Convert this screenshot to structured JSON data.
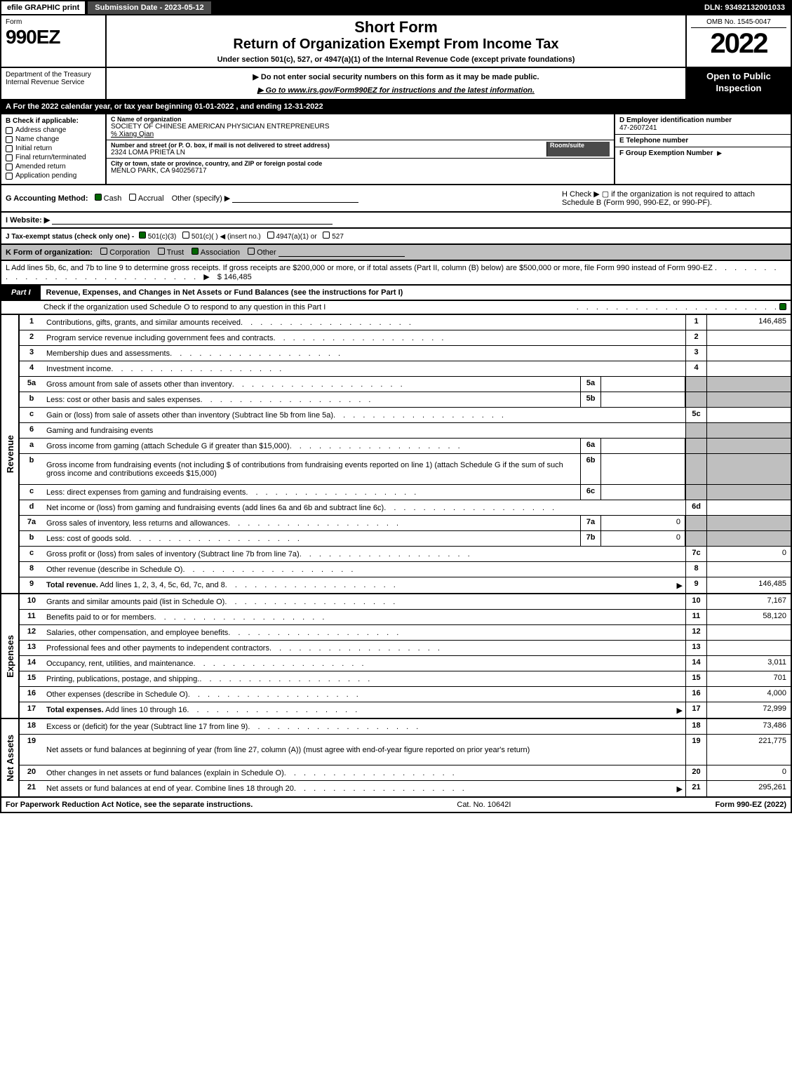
{
  "topbar": {
    "efile": "efile GRAPHIC print",
    "submission": "Submission Date - 2023-05-12",
    "dln": "DLN: 93492132001033"
  },
  "header": {
    "form_word": "Form",
    "form_num": "990EZ",
    "dept": "Department of the Treasury\nInternal Revenue Service",
    "short_form": "Short Form",
    "return_title": "Return of Organization Exempt From Income Tax",
    "under_section": "Under section 501(c), 527, or 4947(a)(1) of the Internal Revenue Code (except private foundations)",
    "nossn": "▶ Do not enter social security numbers on this form as it may be made public.",
    "goto": "▶ Go to www.irs.gov/Form990EZ for instructions and the latest information.",
    "omb": "OMB No. 1545-0047",
    "year": "2022",
    "open": "Open to Public Inspection"
  },
  "section_a": "A  For the 2022 calendar year, or tax year beginning 01-01-2022  , and ending 12-31-2022",
  "col_b": {
    "hdr": "B  Check if applicable:",
    "items": [
      "Address change",
      "Name change",
      "Initial return",
      "Final return/terminated",
      "Amended return",
      "Application pending"
    ]
  },
  "col_c": {
    "name_label": "C Name of organization",
    "name": "SOCIETY OF CHINESE AMERICAN PHYSICIAN ENTREPRENEURS",
    "care_of": "% Xiang Qian",
    "street_label": "Number and street (or P. O. box, if mail is not delivered to street address)",
    "room_label": "Room/suite",
    "street": "2324 LOMA PRIETA LN",
    "city_label": "City or town, state or province, country, and ZIP or foreign postal code",
    "city": "MENLO PARK, CA  940256717"
  },
  "col_d": {
    "ein_label": "D Employer identification number",
    "ein": "47-2607241",
    "tel_label": "E Telephone number",
    "group_label": "F Group Exemption Number"
  },
  "g_row": {
    "label": "G Accounting Method:",
    "cash": "Cash",
    "accrual": "Accrual",
    "other": "Other (specify) ▶"
  },
  "h_row": {
    "text": "H  Check ▶  ▢  if the organization is not required to attach Schedule B (Form 990, 990-EZ, or 990-PF)."
  },
  "i_row": {
    "label": "I Website: ▶"
  },
  "j_row": {
    "label": "J Tax-exempt status (check only one) -",
    "c3": "501(c)(3)",
    "c": "501(c)(  )",
    "insert": "◀ (insert no.)",
    "a4947": "4947(a)(1) or",
    "s527": "527"
  },
  "k_row": {
    "label": "K Form of organization:",
    "corp": "Corporation",
    "trust": "Trust",
    "assoc": "Association",
    "other": "Other"
  },
  "l_row": {
    "text": "L Add lines 5b, 6c, and 7b to line 9 to determine gross receipts. If gross receipts are $200,000 or more, or if total assets (Part II, column (B) below) are $500,000 or more, file Form 990 instead of Form 990-EZ",
    "amount": "$ 146,485"
  },
  "part1": {
    "label": "Part I",
    "title": "Revenue, Expenses, and Changes in Net Assets or Fund Balances (see the instructions for Part I)",
    "check_text": "Check if the organization used Schedule O to respond to any question in this Part I"
  },
  "revenue_lines": [
    {
      "n": "1",
      "d": "Contributions, gifts, grants, and similar amounts received",
      "r": "1",
      "a": "146,485"
    },
    {
      "n": "2",
      "d": "Program service revenue including government fees and contracts",
      "r": "2",
      "a": ""
    },
    {
      "n": "3",
      "d": "Membership dues and assessments",
      "r": "3",
      "a": ""
    },
    {
      "n": "4",
      "d": "Investment income",
      "r": "4",
      "a": ""
    },
    {
      "n": "5a",
      "d": "Gross amount from sale of assets other than inventory",
      "sub": "5a",
      "sv": "",
      "shade": true
    },
    {
      "n": "b",
      "d": "Less: cost or other basis and sales expenses",
      "sub": "5b",
      "sv": "",
      "shade": true
    },
    {
      "n": "c",
      "d": "Gain or (loss) from sale of assets other than inventory (Subtract line 5b from line 5a)",
      "r": "5c",
      "a": ""
    },
    {
      "n": "6",
      "d": "Gaming and fundraising events",
      "shade": true,
      "noright": true
    },
    {
      "n": "a",
      "d": "Gross income from gaming (attach Schedule G if greater than $15,000)",
      "sub": "6a",
      "sv": "",
      "shade": true
    },
    {
      "n": "b",
      "d": "Gross income from fundraising events (not including $                          of contributions from fundraising events reported on line 1) (attach Schedule G if the sum of such gross income and contributions exceeds $15,000)",
      "sub": "6b",
      "sv": "",
      "shade": true,
      "tall": true
    },
    {
      "n": "c",
      "d": "Less: direct expenses from gaming and fundraising events",
      "sub": "6c",
      "sv": "",
      "shade": true
    },
    {
      "n": "d",
      "d": "Net income or (loss) from gaming and fundraising events (add lines 6a and 6b and subtract line 6c)",
      "r": "6d",
      "a": ""
    },
    {
      "n": "7a",
      "d": "Gross sales of inventory, less returns and allowances",
      "sub": "7a",
      "sv": "0",
      "shade": true
    },
    {
      "n": "b",
      "d": "Less: cost of goods sold",
      "sub": "7b",
      "sv": "0",
      "shade": true
    },
    {
      "n": "c",
      "d": "Gross profit or (loss) from sales of inventory (Subtract line 7b from line 7a)",
      "r": "7c",
      "a": "0"
    },
    {
      "n": "8",
      "d": "Other revenue (describe in Schedule O)",
      "r": "8",
      "a": ""
    },
    {
      "n": "9",
      "d": "Total revenue. Add lines 1, 2, 3, 4, 5c, 6d, 7c, and 8",
      "r": "9",
      "a": "146,485",
      "bold": true,
      "arrow": true
    }
  ],
  "expense_lines": [
    {
      "n": "10",
      "d": "Grants and similar amounts paid (list in Schedule O)",
      "r": "10",
      "a": "7,167"
    },
    {
      "n": "11",
      "d": "Benefits paid to or for members",
      "r": "11",
      "a": "58,120"
    },
    {
      "n": "12",
      "d": "Salaries, other compensation, and employee benefits",
      "r": "12",
      "a": ""
    },
    {
      "n": "13",
      "d": "Professional fees and other payments to independent contractors",
      "r": "13",
      "a": ""
    },
    {
      "n": "14",
      "d": "Occupancy, rent, utilities, and maintenance",
      "r": "14",
      "a": "3,011"
    },
    {
      "n": "15",
      "d": "Printing, publications, postage, and shipping.",
      "r": "15",
      "a": "701"
    },
    {
      "n": "16",
      "d": "Other expenses (describe in Schedule O)",
      "r": "16",
      "a": "4,000"
    },
    {
      "n": "17",
      "d": "Total expenses. Add lines 10 through 16",
      "r": "17",
      "a": "72,999",
      "bold": true,
      "arrow": true
    }
  ],
  "netassets_lines": [
    {
      "n": "18",
      "d": "Excess or (deficit) for the year (Subtract line 17 from line 9)",
      "r": "18",
      "a": "73,486"
    },
    {
      "n": "19",
      "d": "Net assets or fund balances at beginning of year (from line 27, column (A)) (must agree with end-of-year figure reported on prior year's return)",
      "r": "19",
      "a": "221,775",
      "tall": true
    },
    {
      "n": "20",
      "d": "Other changes in net assets or fund balances (explain in Schedule O)",
      "r": "20",
      "a": "0"
    },
    {
      "n": "21",
      "d": "Net assets or fund balances at end of year. Combine lines 18 through 20",
      "r": "21",
      "a": "295,261",
      "arrow": true
    }
  ],
  "side_labels": {
    "rev": "Revenue",
    "exp": "Expenses",
    "net": "Net Assets"
  },
  "footer": {
    "left": "For Paperwork Reduction Act Notice, see the separate instructions.",
    "center": "Cat. No. 10642I",
    "right": "Form 990-EZ (2022)"
  }
}
